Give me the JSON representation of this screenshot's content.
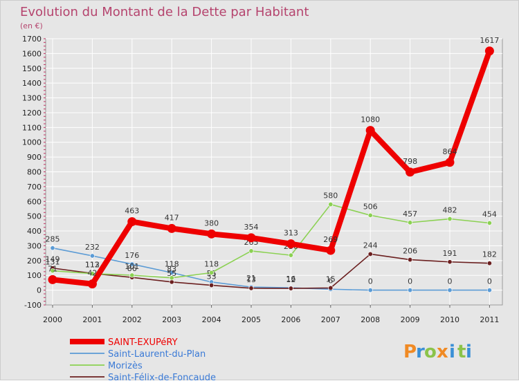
{
  "chart_data": {
    "type": "line",
    "title": "Evolution du Montant de la Dette par Habitant",
    "subtitle": "(en €)",
    "x": [
      "2000",
      "2001",
      "2002",
      "2003",
      "2004",
      "2005",
      "2006",
      "2007",
      "2008",
      "2009",
      "2010",
      "2011"
    ],
    "y_ticks": [
      "-100",
      "0",
      "100",
      "200",
      "300",
      "400",
      "500",
      "600",
      "700",
      "800",
      "900",
      "1000",
      "1100",
      "1200",
      "1300",
      "1400",
      "1500",
      "1600",
      "1700"
    ],
    "ylim": [
      -100,
      1700
    ],
    "grid": true,
    "legend_position": "bottom-left",
    "series": [
      {
        "name": "SAINT-EXUPéRY",
        "color": "#ee0000",
        "values": [
          71,
          42,
          463,
          417,
          380,
          354,
          313,
          269,
          1080,
          798,
          864,
          1617
        ],
        "labels": [
          "71",
          "42",
          "463",
          "417",
          "380",
          "354",
          "313",
          "269",
          "1080",
          "798",
          "864",
          "1617"
        ]
      },
      {
        "name": "Saint-Laurent-du-Plan",
        "color": "#5b9bd5",
        "values": [
          285,
          232,
          176,
          118,
          55,
          21,
          16,
          6,
          0,
          0,
          0,
          0
        ],
        "labels": [
          "285",
          "232",
          "176",
          "118",
          "55",
          "21",
          "16",
          "6",
          "0",
          "0",
          "0",
          "0"
        ]
      },
      {
        "name": "Morizès",
        "color": "#8bd152",
        "values": [
          131,
          112,
          101,
          83,
          118,
          265,
          236,
          580,
          506,
          457,
          482,
          454
        ],
        "labels": [
          "131",
          "112",
          "101",
          "83",
          "118",
          "265",
          "236",
          "580",
          "506",
          "457",
          "482",
          "454"
        ]
      },
      {
        "name": "Saint-Félix-de-Foncaude",
        "color": "#6b1f1f",
        "values": [
          149,
          113,
          86,
          55,
          33,
          13,
          12,
          15,
          244,
          206,
          191,
          182
        ],
        "labels": [
          "149",
          "113",
          "86",
          "55",
          "33",
          "13",
          "12",
          "15",
          "244",
          "206",
          "191",
          "182"
        ]
      }
    ]
  },
  "branding": {
    "letters": [
      "P",
      "r",
      "o",
      "x",
      "i",
      "t",
      "i"
    ],
    "colors": [
      "#f08a24",
      "#3a8fd6",
      "#8bc34a",
      "#f08a24",
      "#3a8fd6",
      "#8bc34a",
      "#3a8fd6"
    ]
  }
}
